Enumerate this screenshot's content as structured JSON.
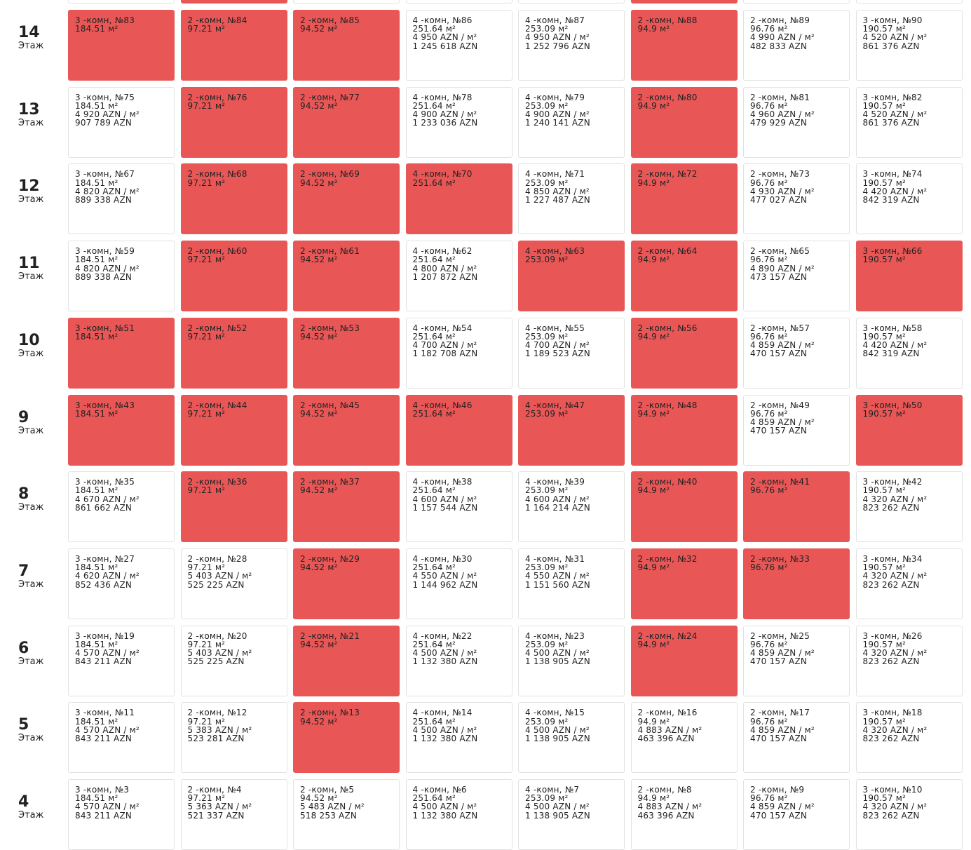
{
  "floors": [
    {
      "number": "14",
      "label": "Этаж",
      "cells": [
        [
          "3 -комн, №83",
          "184.51 м²"
        ],
        [
          "2 -комн, №84",
          "97.21 м²"
        ],
        [
          "2 -комн, №85",
          "94.52 м²"
        ],
        [
          "4 -комн, №86",
          "251.64 м²",
          "4 950 AZN / м²",
          "1 245 618 AZN"
        ],
        [
          "4 -комн, №87",
          "253.09 м²",
          "4 950 AZN / м²",
          "1 252 796 AZN"
        ],
        [
          "2 -комн, №88",
          "94.9 м²"
        ],
        [
          "2 -комн, №89",
          "96.76 м²",
          "4 990 AZN / м²",
          "482 833 AZN"
        ],
        [
          "3 -комн, №90",
          "190.57 м²",
          "4 520 AZN / м²",
          "861 376 AZN"
        ]
      ]
    },
    {
      "number": "13",
      "label": "Этаж",
      "cells": [
        [
          "3 -комн, №75",
          "184.51 м²",
          "4 920 AZN / м²",
          "907 789 AZN"
        ],
        [
          "2 -комн, №76",
          "97.21 м²"
        ],
        [
          "2 -комн, №77",
          "94.52 м²"
        ],
        [
          "4 -комн, №78",
          "251.64 м²",
          "4 900 AZN / м²",
          "1 233 036 AZN"
        ],
        [
          "4 -комн, №79",
          "253.09 м²",
          "4 900 AZN / м²",
          "1 240 141 AZN"
        ],
        [
          "2 -комн, №80",
          "94.9 м²"
        ],
        [
          "2 -комн, №81",
          "96.76 м²",
          "4 960 AZN / м²",
          "479 929 AZN"
        ],
        [
          "3 -комн, №82",
          "190.57 м²",
          "4 520 AZN / м²",
          "861 376 AZN"
        ]
      ]
    },
    {
      "number": "12",
      "label": "Этаж",
      "cells": [
        [
          "3 -комн, №67",
          "184.51 м²",
          "4 820 AZN / м²",
          "889 338 AZN"
        ],
        [
          "2 -комн, №68",
          "97.21 м²"
        ],
        [
          "2 -комн, №69",
          "94.52 м²"
        ],
        [
          "4 -комн, №70",
          "251.64 м²"
        ],
        [
          "4 -комн, №71",
          "253.09 м²",
          "4 850 AZN / м²",
          "1 227 487 AZN"
        ],
        [
          "2 -комн, №72",
          "94.9 м²"
        ],
        [
          "2 -комн, №73",
          "96.76 м²",
          "4 930 AZN / м²",
          "477 027 AZN"
        ],
        [
          "3 -комн, №74",
          "190.57 м²",
          "4 420 AZN / м²",
          "842 319 AZN"
        ]
      ]
    },
    {
      "number": "11",
      "label": "Этаж",
      "cells": [
        [
          "3 -комн, №59",
          "184.51 м²",
          "4 820 AZN / м²",
          "889 338 AZN"
        ],
        [
          "2 -комн, №60",
          "97.21 м²"
        ],
        [
          "2 -комн, №61",
          "94.52 м²"
        ],
        [
          "4 -комн, №62",
          "251.64 м²",
          "4 800 AZN / м²",
          "1 207 872 AZN"
        ],
        [
          "4 -комн, №63",
          "253.09 м²"
        ],
        [
          "2 -комн, №64",
          "94.9 м²"
        ],
        [
          "2 -комн, №65",
          "96.76 м²",
          "4 890 AZN / м²",
          "473 157 AZN"
        ],
        [
          "3 -комн, №66",
          "190.57 м²"
        ]
      ]
    },
    {
      "number": "10",
      "label": "Этаж",
      "cells": [
        [
          "3 -комн, №51",
          "184.51 м²"
        ],
        [
          "2 -комн, №52",
          "97.21 м²"
        ],
        [
          "2 -комн, №53",
          "94.52 м²"
        ],
        [
          "4 -комн, №54",
          "251.64 м²",
          "4 700 AZN / м²",
          "1 182 708 AZN"
        ],
        [
          "4 -комн, №55",
          "253.09 м²",
          "4 700 AZN / м²",
          "1 189 523 AZN"
        ],
        [
          "2 -комн, №56",
          "94.9 м²"
        ],
        [
          "2 -комн, №57",
          "96.76 м²",
          "4 859 AZN / м²",
          "470 157 AZN"
        ],
        [
          "3 -комн, №58",
          "190.57 м²",
          "4 420 AZN / м²",
          "842 319 AZN"
        ]
      ]
    },
    {
      "number": "9",
      "label": "Этаж",
      "cells": [
        [
          "3 -комн, №43",
          "184.51 м²"
        ],
        [
          "2 -комн, №44",
          "97.21 м²"
        ],
        [
          "2 -комн, №45",
          "94.52 м²"
        ],
        [
          "4 -комн, №46",
          "251.64 м²"
        ],
        [
          "4 -комн, №47",
          "253.09 м²"
        ],
        [
          "2 -комн, №48",
          "94.9 м²"
        ],
        [
          "2 -комн, №49",
          "96.76 м²",
          "4 859 AZN / м²",
          "470 157 AZN"
        ],
        [
          "3 -комн, №50",
          "190.57 м²"
        ]
      ]
    },
    {
      "number": "8",
      "label": "Этаж",
      "cells": [
        [
          "3 -комн, №35",
          "184.51 м²",
          "4 670 AZN / м²",
          "861 662 AZN"
        ],
        [
          "2 -комн, №36",
          "97.21 м²"
        ],
        [
          "2 -комн, №37",
          "94.52 м²"
        ],
        [
          "4 -комн, №38",
          "251.64 м²",
          "4 600 AZN / м²",
          "1 157 544 AZN"
        ],
        [
          "4 -комн, №39",
          "253.09 м²",
          "4 600 AZN / м²",
          "1 164 214 AZN"
        ],
        [
          "2 -комн, №40",
          "94.9 м²"
        ],
        [
          "2 -комн, №41",
          "96.76 м²"
        ],
        [
          "3 -комн, №42",
          "190.57 м²",
          "4 320 AZN / м²",
          "823 262 AZN"
        ]
      ]
    },
    {
      "number": "7",
      "label": "Этаж",
      "cells": [
        [
          "3 -комн, №27",
          "184.51 м²",
          "4 620 AZN / м²",
          "852 436 AZN"
        ],
        [
          "2 -комн, №28",
          "97.21 м²",
          "5 403 AZN / м²",
          "525 225 AZN"
        ],
        [
          "2 -комн, №29",
          "94.52 м²"
        ],
        [
          "4 -комн, №30",
          "251.64 м²",
          "4 550 AZN / м²",
          "1 144 962 AZN"
        ],
        [
          "4 -комн, №31",
          "253.09 м²",
          "4 550 AZN / м²",
          "1 151 560 AZN"
        ],
        [
          "2 -комн, №32",
          "94.9 м²"
        ],
        [
          "2 -комн, №33",
          "96.76 м²"
        ],
        [
          "3 -комн, №34",
          "190.57 м²",
          "4 320 AZN / м²",
          "823 262 AZN"
        ]
      ]
    },
    {
      "number": "6",
      "label": "Этаж",
      "cells": [
        [
          "3 -комн, №19",
          "184.51 м²",
          "4 570 AZN / м²",
          "843 211 AZN"
        ],
        [
          "2 -комн, №20",
          "97.21 м²",
          "5 403 AZN / м²",
          "525 225 AZN"
        ],
        [
          "2 -комн, №21",
          "94.52 м²"
        ],
        [
          "4 -комн, №22",
          "251.64 м²",
          "4 500 AZN / м²",
          "1 132 380 AZN"
        ],
        [
          "4 -комн, №23",
          "253.09 м²",
          "4 500 AZN / м²",
          "1 138 905 AZN"
        ],
        [
          "2 -комн, №24",
          "94.9 м²"
        ],
        [
          "2 -комн, №25",
          "96.76 м²",
          "4 859 AZN / м²",
          "470 157 AZN"
        ],
        [
          "3 -комн, №26",
          "190.57 м²",
          "4 320 AZN / м²",
          "823 262 AZN"
        ]
      ]
    },
    {
      "number": "5",
      "label": "Этаж",
      "cells": [
        [
          "3 -комн, №11",
          "184.51 м²",
          "4 570 AZN / м²",
          "843 211 AZN"
        ],
        [
          "2 -комн, №12",
          "97.21 м²",
          "5 383 AZN / м²",
          "523 281 AZN"
        ],
        [
          "2 -комн, №13",
          "94.52 м²"
        ],
        [
          "4 -комн, №14",
          "251.64 м²",
          "4 500 AZN / м²",
          "1 132 380 AZN"
        ],
        [
          "4 -комн, №15",
          "253.09 м²",
          "4 500 AZN / м²",
          "1 138 905 AZN"
        ],
        [
          "2 -комн, №16",
          "94.9 м²",
          "4 883 AZN / м²",
          "463 396 AZN"
        ],
        [
          "2 -комн, №17",
          "96.76 м²",
          "4 859 AZN / м²",
          "470 157 AZN"
        ],
        [
          "3 -комн, №18",
          "190.57 м²",
          "4 320 AZN / м²",
          "823 262 AZN"
        ]
      ]
    },
    {
      "number": "4",
      "label": "Этаж",
      "cells": [
        [
          "3 -комн, №3",
          "184.51 м²",
          "4 570 AZN / м²",
          "843 211 AZN"
        ],
        [
          "2 -комн, №4",
          "97.21 м²",
          "5 363 AZN / м²",
          "521 337 AZN"
        ],
        [
          "2 -комн, №5",
          "94.52 м²",
          "5 483 AZN / м²",
          "518 253 AZN"
        ],
        [
          "4 -комн, №6",
          "251.64 м²",
          "4 500 AZN / м²",
          "1 132 380 AZN"
        ],
        [
          "4 -комн, №7",
          "253.09 м²",
          "4 500 AZN / м²",
          "1 138 905 AZN"
        ],
        [
          "2 -комн, №8",
          "94.9 м²",
          "4 883 AZN / м²",
          "463 396 AZN"
        ],
        [
          "2 -комн, №9",
          "96.76 м²",
          "4 859 AZN / м²",
          "470 157 AZN"
        ],
        [
          "3 -комн, №10",
          "190.57 м²",
          "4 320 AZN / м²",
          "823 262 AZN"
        ]
      ]
    }
  ]
}
